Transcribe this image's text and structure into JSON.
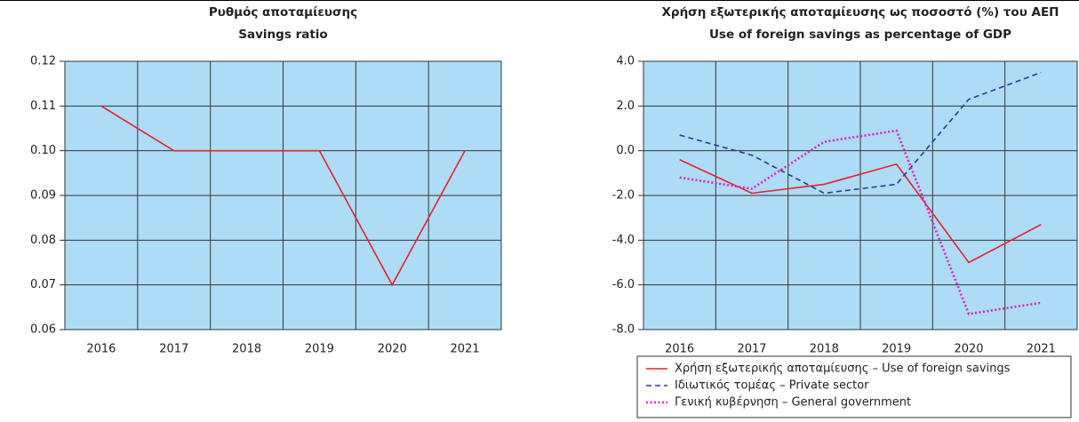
{
  "chart_data": [
    {
      "type": "line",
      "title": "Ρυθμός αποταμίευσης",
      "subtitle": "Savings ratio",
      "categories": [
        "2016",
        "2017",
        "2018",
        "2019",
        "2020",
        "2021"
      ],
      "series": [
        {
          "name": null,
          "color": "#e8202a",
          "dash": "solid",
          "values": [
            0.11,
            0.1,
            0.1,
            0.1,
            0.07,
            0.1
          ]
        }
      ],
      "ylim": [
        0.06,
        0.12
      ],
      "yticks": [
        0.06,
        0.07,
        0.08,
        0.09,
        {
          "value": 0.1,
          "label": "0.10"
        },
        0.11,
        0.12
      ],
      "grid": true
    },
    {
      "type": "line",
      "title": "Χρήση εξωτερικής αποταμίευσης ως ποσοστό (%) του ΑΕΠ",
      "subtitle": "Use of foreign savings as percentage of GDP",
      "categories": [
        "2016",
        "2017",
        "2018",
        "2019",
        "2020",
        "2021"
      ],
      "series": [
        {
          "name": "Χρήση εξωτερικής αποταμίευσης – Use of foreign savings",
          "color": "#e8202a",
          "dash": "solid",
          "values": [
            -0.4,
            -1.9,
            -1.5,
            -0.6,
            -5.0,
            -3.3
          ]
        },
        {
          "name": "Ιδιωτικός τομέας – Private sector",
          "color": "#2a3a9a",
          "dash": "dashed",
          "values": [
            0.7,
            -0.2,
            -1.9,
            -1.5,
            2.3,
            3.5
          ]
        },
        {
          "name": "Γενική κυβέρνηση – General government",
          "color": "#e020c0",
          "dash": "dotted",
          "values": [
            -1.2,
            -1.7,
            0.4,
            0.9,
            -7.3,
            -6.8
          ]
        }
      ],
      "ylim": [
        -8,
        4
      ],
      "yticks": [
        {
          "value": -8,
          "label": "-8.0"
        },
        {
          "value": -6,
          "label": "-6.0"
        },
        {
          "value": -4,
          "label": "-4.0"
        },
        {
          "value": -2,
          "label": "-2.0"
        },
        {
          "value": 0,
          "label": "0.0"
        },
        {
          "value": 2,
          "label": "2.0"
        },
        {
          "value": 4,
          "label": "4.0"
        }
      ],
      "grid": true,
      "legend": "bottom"
    }
  ]
}
